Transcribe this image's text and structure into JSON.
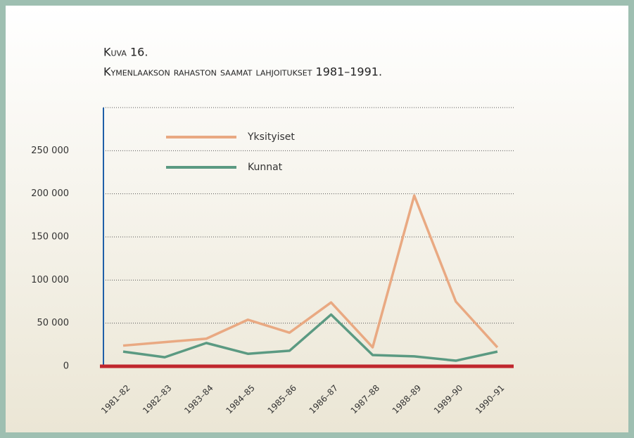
{
  "chart_data": {
    "type": "line",
    "title": "Kuva 16.",
    "subtitle": "Kymenlaakson rahaston saamat lahjoitukset 1981–1991.",
    "categories": [
      "1981–82",
      "1982–83",
      "1983–84",
      "1984–85",
      "1985–86",
      "1986–87",
      "1987–88",
      "1988–89",
      "1989–90",
      "1990–91"
    ],
    "series": [
      {
        "name": "Yksityiset",
        "color": "#e9a982",
        "values": [
          24000,
          28000,
          32000,
          54000,
          39000,
          74000,
          22000,
          198000,
          75000,
          22000
        ]
      },
      {
        "name": "Kunnat",
        "color": "#5b9a82",
        "values": [
          17000,
          10500,
          27000,
          14500,
          18000,
          60000,
          13000,
          11500,
          6500,
          17000
        ]
      }
    ],
    "ylim": [
      0,
      300000
    ],
    "yticks": [
      0,
      {
        "value": 50000,
        "label": "50 000"
      },
      {
        "value": 100000,
        "label": "100 000"
      },
      {
        "value": 150000,
        "label": "150 000"
      },
      {
        "value": 200000,
        "label": "200 000"
      },
      {
        "value": 250000,
        "label": "250 000"
      }
    ],
    "grid": true,
    "legend": "top-left"
  }
}
